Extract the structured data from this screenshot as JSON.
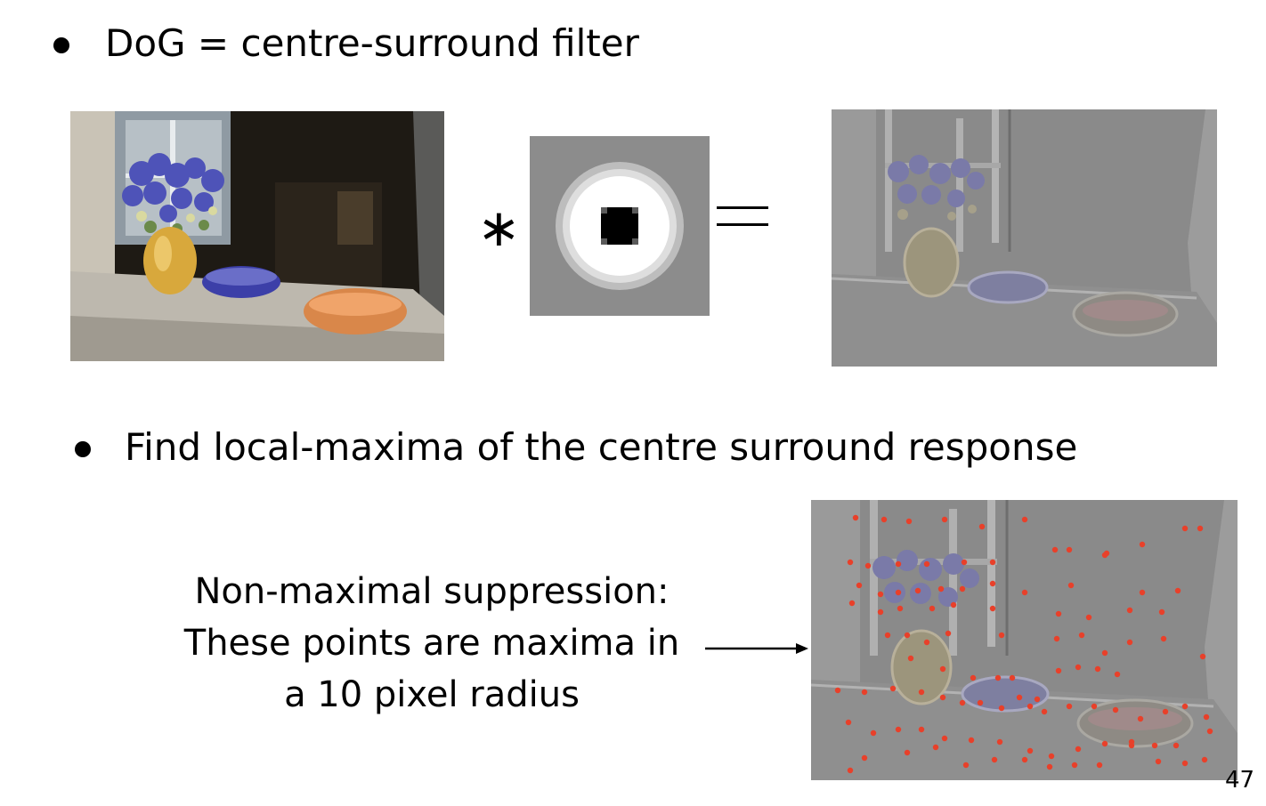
{
  "bullets": [
    {
      "text": "DoG = centre-surround filter"
    },
    {
      "text": "Find local-maxima of the centre surround response"
    }
  ],
  "operators": {
    "convolve": "∗"
  },
  "annotation": {
    "line1": "Non-maximal suppression:",
    "line2": "These points are maxima in",
    "line3": "a 10 pixel radius"
  },
  "page_number": "47",
  "colors": {
    "maxima_point": "#e8402a",
    "dog_gray": "#8a8a8a",
    "kernel_bg": "#8c8c8c"
  },
  "icons": {
    "convolve": "asterisk",
    "equals": "equals-sign",
    "arrow": "right-arrow"
  }
}
